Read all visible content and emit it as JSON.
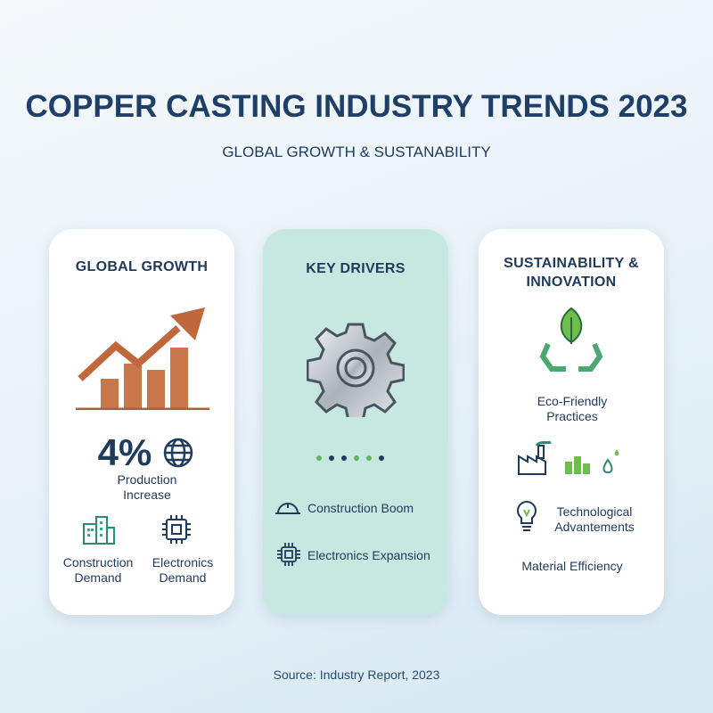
{
  "header": {
    "title": "COPPER CASTING INDUSTRY TRENDS 2023",
    "subtitle": "GLOBAL GROWTH & SUSTANABILITY"
  },
  "cards": [
    {
      "title": "GLOBAL GROWTH",
      "stat": "4%",
      "stat_label": "Production Increase",
      "items": [
        "Construction Demand",
        "Electronics Demand"
      ]
    },
    {
      "title": "KEY DRIVERS",
      "items": [
        "Construction Boom",
        "Electronics Expansion"
      ]
    },
    {
      "title": "SUSTAINABILITY & INNOVATION",
      "items": [
        "Eco-Friendly Practices",
        "Technological Advantements",
        "Material Efficiency"
      ]
    }
  ],
  "footer": "Source: Industry Report, 2023"
}
